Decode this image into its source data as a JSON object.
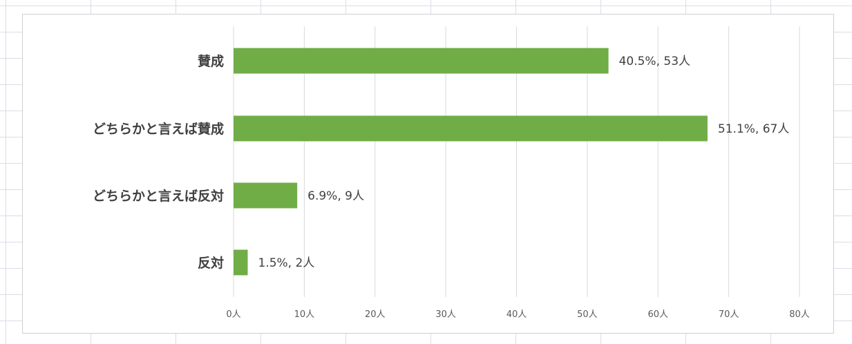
{
  "chart_data": {
    "type": "bar",
    "orientation": "horizontal",
    "categories": [
      "賛成",
      "どちらかと言えば賛成",
      "どちらかと言えば反対",
      "反対"
    ],
    "values": [
      53,
      67,
      9,
      2
    ],
    "percentages": [
      "40.5%",
      "51.1%",
      "6.9%",
      "1.5%"
    ],
    "data_labels": [
      "40.5%, 53人",
      "51.1%, 67人",
      "6.9%, 9人",
      "1.5%, 2人"
    ],
    "x_ticks": [
      "0人",
      "10人",
      "20人",
      "30人",
      "40人",
      "50人",
      "60人",
      "70人",
      "80人"
    ],
    "xlim": [
      0,
      80
    ],
    "grid": true,
    "bar_color": "#70ad47",
    "gridline_color": "#d9d9d9",
    "title": "",
    "xlabel": "",
    "ylabel": ""
  }
}
